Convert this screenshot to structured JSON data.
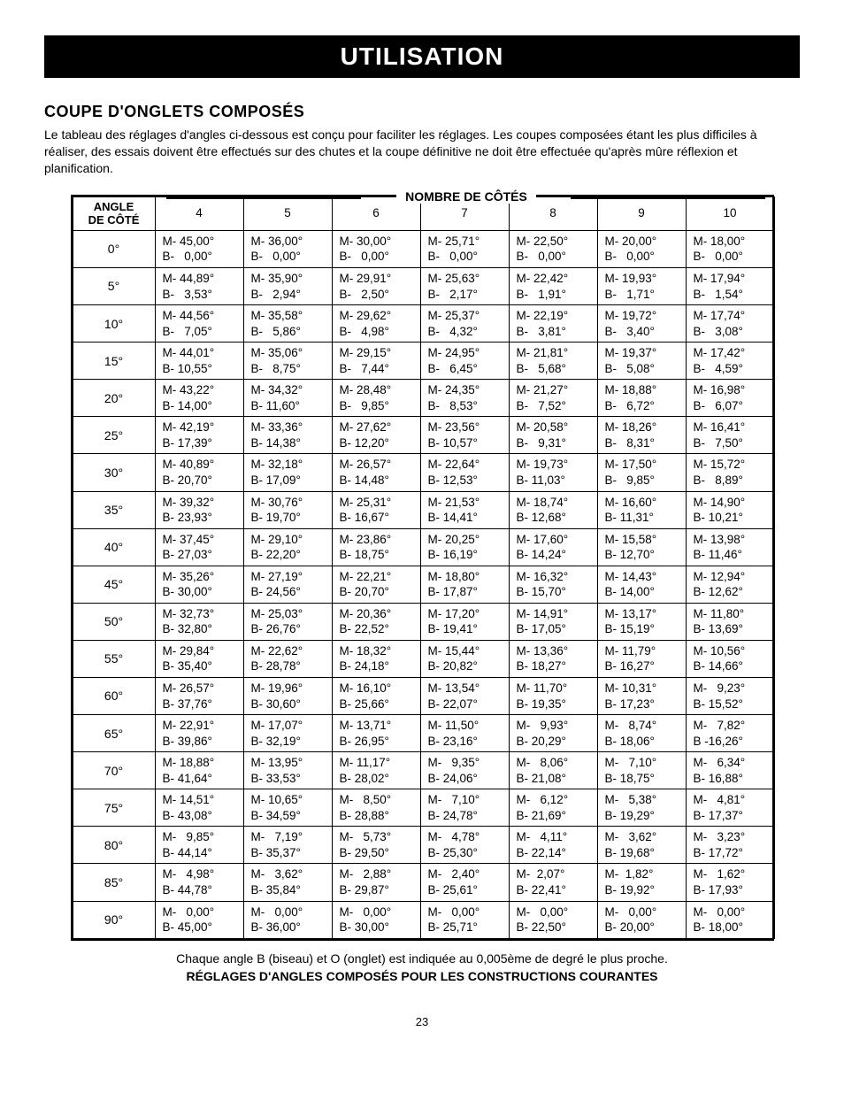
{
  "banner": "UTILISATION",
  "section_title": "COUPE D'ONGLETS COMPOSÉS",
  "intro": "Le tableau des réglages d'angles ci-dessous est conçu pour faciliter les réglages. Les coupes composées étant les plus difficiles à réaliser, des essais doivent être effectués sur des chutes et la coupe définitive ne doit être effectuée qu'après mûre réflexion et planification.",
  "super_header": "NOMBRE DE CÔTÉS",
  "corner_header": "ANGLE\nDE CÔTÉ",
  "side_counts": [
    "4",
    "5",
    "6",
    "7",
    "8",
    "9",
    "10"
  ],
  "angles": [
    "0°",
    "5°",
    "10°",
    "15°",
    "20°",
    "25°",
    "30°",
    "35°",
    "40°",
    "45°",
    "50°",
    "55°",
    "60°",
    "65°",
    "70°",
    "75°",
    "80°",
    "85°",
    "90°"
  ],
  "cells": [
    [
      [
        "M- 45,00°",
        "B-   0,00°"
      ],
      [
        "M- 36,00°",
        "B-   0,00°"
      ],
      [
        "M- 30,00°",
        "B-   0,00°"
      ],
      [
        "M- 25,71°",
        "B-   0,00°"
      ],
      [
        "M- 22,50°",
        "B-   0,00°"
      ],
      [
        "M- 20,00°",
        "B-   0,00°"
      ],
      [
        "M- 18,00°",
        "B-   0,00°"
      ]
    ],
    [
      [
        "M- 44,89°",
        "B-   3,53°"
      ],
      [
        "M- 35,90°",
        "B-   2,94°"
      ],
      [
        "M- 29,91°",
        "B-   2,50°"
      ],
      [
        "M- 25,63°",
        "B-   2,17°"
      ],
      [
        "M- 22,42°",
        "B-   1,91°"
      ],
      [
        "M- 19,93°",
        "B-   1,71°"
      ],
      [
        "M- 17,94°",
        "B-   1,54°"
      ]
    ],
    [
      [
        "M- 44,56°",
        "B-   7,05°"
      ],
      [
        "M- 35,58°",
        "B-   5,86°"
      ],
      [
        "M- 29,62°",
        "B-   4,98°"
      ],
      [
        "M- 25,37°",
        "B-   4,32°"
      ],
      [
        "M- 22,19°",
        "B-   3,81°"
      ],
      [
        "M- 19,72°",
        "B-   3,40°"
      ],
      [
        "M- 17,74°",
        "B-   3,08°"
      ]
    ],
    [
      [
        "M- 44,01°",
        "B- 10,55°"
      ],
      [
        "M- 35,06°",
        "B-   8,75°"
      ],
      [
        "M- 29,15°",
        "B-   7,44°"
      ],
      [
        "M- 24,95°",
        "B-   6,45°"
      ],
      [
        "M- 21,81°",
        "B-   5,68°"
      ],
      [
        "M- 19,37°",
        "B-   5,08°"
      ],
      [
        "M- 17,42°",
        "B-   4,59°"
      ]
    ],
    [
      [
        "M- 43,22°",
        "B- 14,00°"
      ],
      [
        "M- 34,32°",
        "B- 11,60°"
      ],
      [
        "M- 28,48°",
        "B-   9,85°"
      ],
      [
        "M- 24,35°",
        "B-   8,53°"
      ],
      [
        "M- 21,27°",
        "B-   7,52°"
      ],
      [
        "M- 18,88°",
        "B-   6,72°"
      ],
      [
        "M- 16,98°",
        "B-   6,07°"
      ]
    ],
    [
      [
        "M- 42,19°",
        "B- 17,39°"
      ],
      [
        "M- 33,36°",
        "B- 14,38°"
      ],
      [
        "M- 27,62°",
        "B- 12,20°"
      ],
      [
        "M- 23,56°",
        "B- 10,57°"
      ],
      [
        "M- 20,58°",
        "B-   9,31°"
      ],
      [
        "M- 18,26°",
        "B-   8,31°"
      ],
      [
        "M- 16,41°",
        "B-   7,50°"
      ]
    ],
    [
      [
        "M- 40,89°",
        "B- 20,70°"
      ],
      [
        "M- 32,18°",
        "B- 17,09°"
      ],
      [
        "M- 26,57°",
        "B- 14,48°"
      ],
      [
        "M- 22,64°",
        "B- 12,53°"
      ],
      [
        "M- 19,73°",
        "B- 11,03°"
      ],
      [
        "M- 17,50°",
        "B-   9,85°"
      ],
      [
        "M- 15,72°",
        "B-   8,89°"
      ]
    ],
    [
      [
        "M- 39,32°",
        "B- 23,93°"
      ],
      [
        "M- 30,76°",
        "B- 19,70°"
      ],
      [
        "M- 25,31°",
        "B- 16,67°"
      ],
      [
        "M- 21,53°",
        "B- 14,41°"
      ],
      [
        "M- 18,74°",
        "B- 12,68°"
      ],
      [
        "M- 16,60°",
        "B- 11,31°"
      ],
      [
        "M- 14,90°",
        "B- 10,21°"
      ]
    ],
    [
      [
        "M- 37,45°",
        "B- 27,03°"
      ],
      [
        "M- 29,10°",
        "B- 22,20°"
      ],
      [
        "M- 23,86°",
        "B- 18,75°"
      ],
      [
        "M- 20,25°",
        "B- 16,19°"
      ],
      [
        "M- 17,60°",
        "B- 14,24°"
      ],
      [
        "M- 15,58°",
        "B- 12,70°"
      ],
      [
        "M- 13,98°",
        "B- 11,46°"
      ]
    ],
    [
      [
        "M- 35,26°",
        "B- 30,00°"
      ],
      [
        "M- 27,19°",
        "B- 24,56°"
      ],
      [
        "M- 22,21°",
        "B- 20,70°"
      ],
      [
        "M- 18,80°",
        "B- 17,87°"
      ],
      [
        "M- 16,32°",
        "B- 15,70°"
      ],
      [
        "M- 14,43°",
        "B- 14,00°"
      ],
      [
        "M- 12,94°",
        "B- 12,62°"
      ]
    ],
    [
      [
        "M- 32,73°",
        "B- 32,80°"
      ],
      [
        "M- 25,03°",
        "B- 26,76°"
      ],
      [
        "M- 20,36°",
        "B- 22,52°"
      ],
      [
        "M- 17,20°",
        "B- 19,41°"
      ],
      [
        "M- 14,91°",
        "B- 17,05°"
      ],
      [
        "M- 13,17°",
        "B- 15,19°"
      ],
      [
        "M- 11,80°",
        "B- 13,69°"
      ]
    ],
    [
      [
        "M- 29,84°",
        "B- 35,40°"
      ],
      [
        "M- 22,62°",
        "B- 28,78°"
      ],
      [
        "M- 18,32°",
        "B- 24,18°"
      ],
      [
        "M- 15,44°",
        "B- 20,82°"
      ],
      [
        "M- 13,36°",
        "B- 18,27°"
      ],
      [
        "M- 11,79°",
        "B- 16,27°"
      ],
      [
        "M- 10,56°",
        "B- 14,66°"
      ]
    ],
    [
      [
        "M- 26,57°",
        "B- 37,76°"
      ],
      [
        "M- 19,96°",
        "B- 30,60°"
      ],
      [
        "M- 16,10°",
        "B- 25,66°"
      ],
      [
        "M- 13,54°",
        "B- 22,07°"
      ],
      [
        "M- 11,70°",
        "B- 19,35°"
      ],
      [
        "M- 10,31°",
        "B- 17,23°"
      ],
      [
        "M-   9,23°",
        "B- 15,52°"
      ]
    ],
    [
      [
        "M- 22,91°",
        "B- 39,86°"
      ],
      [
        "M- 17,07°",
        "B- 32,19°"
      ],
      [
        "M- 13,71°",
        "B- 26,95°"
      ],
      [
        "M- 11,50°",
        "B- 23,16°"
      ],
      [
        "M-   9,93°",
        "B- 20,29°"
      ],
      [
        "M-   8,74°",
        "B- 18,06°"
      ],
      [
        "M-   7,82°",
        "B -16,26°"
      ]
    ],
    [
      [
        "M- 18,88°",
        "B- 41,64°"
      ],
      [
        "M- 13,95°",
        "B- 33,53°"
      ],
      [
        "M- 11,17°",
        "B- 28,02°"
      ],
      [
        "M-   9,35°",
        "B- 24,06°"
      ],
      [
        "M-   8,06°",
        "B- 21,08°"
      ],
      [
        "M-   7,10°",
        "B- 18,75°"
      ],
      [
        "M-   6,34°",
        "B- 16,88°"
      ]
    ],
    [
      [
        "M- 14,51°",
        "B- 43,08°"
      ],
      [
        "M- 10,65°",
        "B- 34,59°"
      ],
      [
        "M-   8,50°",
        "B- 28,88°"
      ],
      [
        "M-   7,10°",
        "B- 24,78°"
      ],
      [
        "M-   6,12°",
        "B- 21,69°"
      ],
      [
        "M-   5,38°",
        "B- 19,29°"
      ],
      [
        "M-   4,81°",
        "B- 17,37°"
      ]
    ],
    [
      [
        "M-   9,85°",
        "B- 44,14°"
      ],
      [
        "M-   7,19°",
        "B- 35,37°"
      ],
      [
        "M-   5,73°",
        "B- 29,50°"
      ],
      [
        "M-   4,78°",
        "B- 25,30°"
      ],
      [
        "M-   4,11°",
        "B- 22,14°"
      ],
      [
        "M-   3,62°",
        "B- 19,68°"
      ],
      [
        "M-   3,23°",
        "B- 17,72°"
      ]
    ],
    [
      [
        "M-   4,98°",
        "B- 44,78°"
      ],
      [
        "M-   3,62°",
        "B- 35,84°"
      ],
      [
        "M-   2,88°",
        "B- 29,87°"
      ],
      [
        "M-   2,40°",
        "B- 25,61°"
      ],
      [
        "M-  2,07°",
        "B- 22,41°"
      ],
      [
        "M-  1,82°",
        "B- 19,92°"
      ],
      [
        "M-   1,62°",
        "B- 17,93°"
      ]
    ],
    [
      [
        "M-   0,00°",
        "B- 45,00°"
      ],
      [
        "M-   0,00°",
        "B- 36,00°"
      ],
      [
        "M-   0,00°",
        "B- 30,00°"
      ],
      [
        "M-   0,00°",
        "B- 25,71°"
      ],
      [
        "M-   0,00°",
        "B- 22,50°"
      ],
      [
        "M-   0,00°",
        "B- 20,00°"
      ],
      [
        "M-   0,00°",
        "B- 18,00°"
      ]
    ]
  ],
  "caption": "Chaque angle B (biseau) et O (onglet) est indiquée au 0,005ème de degré le plus proche.",
  "caption2": "RÉGLAGES D'ANGLES COMPOSÉS POUR LES CONSTRUCTIONS COURANTES",
  "page_num": "23"
}
